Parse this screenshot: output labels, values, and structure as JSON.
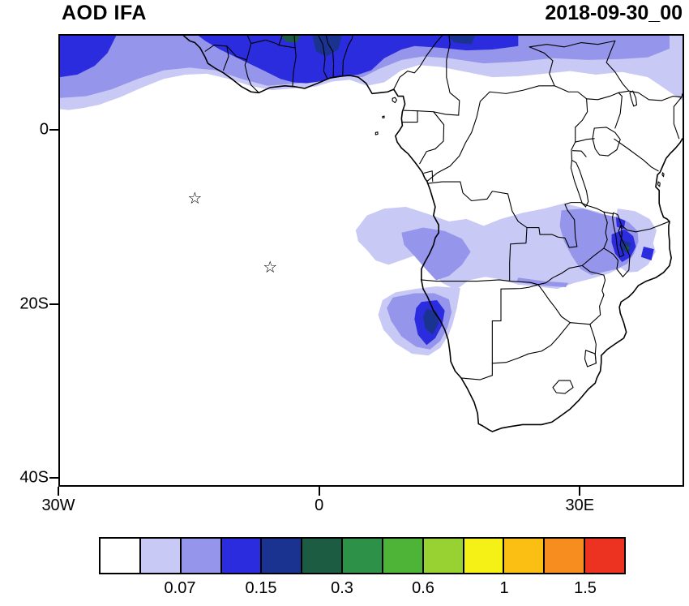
{
  "header": {
    "title": "AOD IFA",
    "timestamp": "2018-09-30_00"
  },
  "map": {
    "extent": {
      "lon_min": -30,
      "lon_max": 42,
      "lat_min": -41,
      "lat_max": 11
    },
    "axes": {
      "lat_ticks": [
        {
          "label": "0",
          "value": 0
        },
        {
          "label": "20S",
          "value": -20
        },
        {
          "label": "40S",
          "value": -40
        }
      ],
      "lon_ticks": [
        {
          "label": "30W",
          "value": -30
        },
        {
          "label": "0",
          "value": 0
        },
        {
          "label": "30E",
          "value": 30
        }
      ]
    }
  },
  "colorbar": {
    "colors": [
      "#FFFFFF",
      "#C9C9F5",
      "#9595EB",
      "#2C2CDF",
      "#1B3390",
      "#1C5C43",
      "#2E9148",
      "#4EB438",
      "#97D232",
      "#F5F116",
      "#FBBE12",
      "#F78D1F",
      "#EC3220"
    ],
    "labels": [
      {
        "text": "0.07",
        "boundary": 2
      },
      {
        "text": "0.15",
        "boundary": 4
      },
      {
        "text": "0.3",
        "boundary": 6
      },
      {
        "text": "0.6",
        "boundary": 8
      },
      {
        "text": "1",
        "boundary": 10
      },
      {
        "text": "1.5",
        "boundary": 12
      }
    ]
  },
  "chart_data": {
    "type": "filled_contour_map",
    "title": "AOD IFA",
    "timestamp": "2018-09-30_00",
    "variable": "Aerosol Optical Depth (AOD)",
    "region": "Africa and tropical Atlantic, 30W-42E, 41S-11N",
    "contour_levels_labeled": [
      0.07,
      0.15,
      0.3,
      0.6,
      1,
      1.5
    ],
    "legend_position": "bottom",
    "marker_glyph": "☆",
    "markers": [
      {
        "type": "star",
        "lon": -14.4,
        "lat": -7.95
      },
      {
        "type": "star",
        "lon": -5.7,
        "lat": -15.95
      }
    ],
    "features": [
      "AOD band along northern edge of domain (5N-11N), strongest between 15W and 23E",
      "Elevated AOD in northwest corner off West Africa",
      "Broad light AOD haze over Angola, Zambia, DRC and Mozambique (8S-18S)",
      "Smoke plume with AOD core near Angola/Namibia coast (12E-14E, 20S-24S)",
      "AOD maximum near Lake Malawi (34E-37E, 11S-15S)"
    ],
    "aod_regions": [
      {
        "name": "sahel-band-light",
        "color_index": 1,
        "points": [
          [
            -30,
            11
          ],
          [
            42,
            11
          ],
          [
            42,
            3.5
          ],
          [
            40.5,
            4.5
          ],
          [
            38,
            6.2
          ],
          [
            35,
            6.8
          ],
          [
            32,
            6.5
          ],
          [
            29,
            6.9
          ],
          [
            26,
            6.6
          ],
          [
            23,
            6.3
          ],
          [
            20,
            6.2
          ],
          [
            17,
            6.8
          ],
          [
            14,
            7.4
          ],
          [
            11.5,
            7.6
          ],
          [
            9.5,
            7.0
          ],
          [
            7.5,
            5.6
          ],
          [
            5.5,
            5.2
          ],
          [
            3.5,
            5.9
          ],
          [
            1.5,
            5.7
          ],
          [
            -0.5,
            5.1
          ],
          [
            -3,
            4.9
          ],
          [
            -5.5,
            4.7
          ],
          [
            -8,
            5.2
          ],
          [
            -10.5,
            6.0
          ],
          [
            -13,
            6.6
          ],
          [
            -15.5,
            6.5
          ],
          [
            -18,
            6.0
          ],
          [
            -20.5,
            5.0
          ],
          [
            -23,
            3.9
          ],
          [
            -25.5,
            3.0
          ],
          [
            -27.5,
            2.6
          ],
          [
            -29,
            2.4
          ],
          [
            -30,
            2.5
          ]
        ]
      },
      {
        "name": "sahel-band-medium",
        "color_index": 2,
        "points": [
          [
            -30,
            11
          ],
          [
            40.5,
            11
          ],
          [
            40.5,
            9.5
          ],
          [
            38,
            8.5
          ],
          [
            35,
            8.3
          ],
          [
            31,
            8.2
          ],
          [
            27,
            8.4
          ],
          [
            23,
            8.0
          ],
          [
            19,
            7.8
          ],
          [
            15,
            8.4
          ],
          [
            12,
            8.6
          ],
          [
            9.5,
            8.2
          ],
          [
            7,
            7.2
          ],
          [
            5,
            6.2
          ],
          [
            3,
            6.3
          ],
          [
            1,
            6.0
          ],
          [
            -1,
            5.6
          ],
          [
            -3.5,
            5.4
          ],
          [
            -6,
            5.2
          ],
          [
            -9,
            6.0
          ],
          [
            -12,
            7.0
          ],
          [
            -15,
            7.3
          ],
          [
            -18,
            7.0
          ],
          [
            -21,
            6.0
          ],
          [
            -24,
            4.8
          ],
          [
            -27,
            4.0
          ],
          [
            -30,
            3.8
          ]
        ]
      },
      {
        "name": "nw-corner-blue",
        "color_index": 3,
        "points": [
          [
            -30,
            11
          ],
          [
            -23.5,
            11
          ],
          [
            -24.5,
            9.0
          ],
          [
            -26,
            7.5
          ],
          [
            -28,
            6.5
          ],
          [
            -30,
            6.2
          ]
        ]
      },
      {
        "name": "sahel-band-blue",
        "color_index": 3,
        "points": [
          [
            -14,
            11
          ],
          [
            23,
            11
          ],
          [
            23,
            9.8
          ],
          [
            20,
            9.4
          ],
          [
            17,
            9.3
          ],
          [
            14,
            9.6
          ],
          [
            11,
            9.8
          ],
          [
            9.5,
            9.4
          ],
          [
            7.5,
            8.4
          ],
          [
            6,
            7.0
          ],
          [
            4.5,
            6.5
          ],
          [
            3,
            6.3
          ],
          [
            1.5,
            6.1
          ],
          [
            0,
            5.7
          ],
          [
            -1.5,
            5.5
          ],
          [
            -3,
            5.6
          ],
          [
            -4.5,
            6.0
          ],
          [
            -6.5,
            7.0
          ],
          [
            -9,
            8.2
          ],
          [
            -11.5,
            9.4
          ],
          [
            -13.2,
            10.4
          ]
        ]
      },
      {
        "name": "sahel-core-navy-a",
        "color_index": 4,
        "points": [
          [
            -0.8,
            11
          ],
          [
            2.6,
            11
          ],
          [
            2.2,
            9.4
          ],
          [
            0.8,
            8.6
          ],
          [
            -0.4,
            9.2
          ]
        ]
      },
      {
        "name": "sahel-core-green",
        "color_index": 5,
        "points": [
          [
            -4.5,
            11
          ],
          [
            -2.2,
            11
          ],
          [
            -2.6,
            10.2
          ],
          [
            -3.8,
            10.3
          ]
        ]
      },
      {
        "name": "sahel-core-navy-b",
        "color_index": 4,
        "points": [
          [
            14.8,
            11
          ],
          [
            18,
            11
          ],
          [
            17.6,
            10.0
          ],
          [
            15.6,
            10.2
          ]
        ]
      },
      {
        "name": "southern-africa-light",
        "color_index": 1,
        "points": [
          [
            4.2,
            -11.5
          ],
          [
            5.5,
            -9.8
          ],
          [
            7.5,
            -9.0
          ],
          [
            10.0,
            -8.8
          ],
          [
            12.5,
            -9.6
          ],
          [
            15.0,
            -10.5
          ],
          [
            17.0,
            -10.2
          ],
          [
            19.0,
            -11.0
          ],
          [
            21.0,
            -10.2
          ],
          [
            23.5,
            -9.5
          ],
          [
            26.0,
            -9.0
          ],
          [
            28.3,
            -8.4
          ],
          [
            30.0,
            -8.8
          ],
          [
            32.3,
            -9.4
          ],
          [
            33.8,
            -10.1
          ],
          [
            34.9,
            -11.5
          ],
          [
            34.7,
            -13.0
          ],
          [
            35.4,
            -14.3
          ],
          [
            35.0,
            -15.8
          ],
          [
            33.5,
            -16.5
          ],
          [
            31.5,
            -17.1
          ],
          [
            29.5,
            -17.6
          ],
          [
            27.5,
            -18.3
          ],
          [
            25.0,
            -18.0
          ],
          [
            23.0,
            -17.8
          ],
          [
            21.0,
            -17.2
          ],
          [
            19.2,
            -16.9
          ],
          [
            17.3,
            -17.3
          ],
          [
            15.8,
            -18.4
          ],
          [
            14.2,
            -17.6
          ],
          [
            13.0,
            -16.2
          ],
          [
            12.6,
            -15.2
          ],
          [
            12.2,
            -14.0
          ],
          [
            10.0,
            -14.8
          ],
          [
            8.0,
            -15.5
          ],
          [
            6.5,
            -15.0
          ],
          [
            5.5,
            -13.8
          ],
          [
            4.5,
            -12.8
          ]
        ]
      },
      {
        "name": "mozambique-light",
        "color_index": 1,
        "points": [
          [
            34.5,
            -9.0
          ],
          [
            36.5,
            -9.3
          ],
          [
            38.2,
            -10.2
          ],
          [
            39.0,
            -11.5
          ],
          [
            38.6,
            -13.0
          ],
          [
            38.9,
            -14.0
          ],
          [
            38.0,
            -15.5
          ],
          [
            36.8,
            -16.3
          ],
          [
            35.6,
            -16.4
          ],
          [
            34.8,
            -15.8
          ],
          [
            34.5,
            -14.0
          ],
          [
            34.3,
            -12.0
          ],
          [
            34.2,
            -10.2
          ]
        ]
      },
      {
        "name": "namibia-plume-light",
        "color_index": 1,
        "points": [
          [
            16.3,
            -18.2
          ],
          [
            15.9,
            -20.5
          ],
          [
            15.4,
            -22.4
          ],
          [
            14.9,
            -23.7
          ],
          [
            14.0,
            -25.1
          ],
          [
            12.6,
            -26.0
          ],
          [
            10.7,
            -25.8
          ],
          [
            8.8,
            -24.6
          ],
          [
            7.4,
            -23.0
          ],
          [
            6.8,
            -21.3
          ],
          [
            7.3,
            -19.6
          ],
          [
            8.8,
            -18.7
          ],
          [
            11.1,
            -18.3
          ],
          [
            13.5,
            -18.0
          ]
        ]
      },
      {
        "name": "angola-medium",
        "color_index": 2,
        "points": [
          [
            9.5,
            -11.8
          ],
          [
            12.0,
            -11.2
          ],
          [
            14.5,
            -11.6
          ],
          [
            16.5,
            -12.5
          ],
          [
            17.5,
            -14.0
          ],
          [
            16.5,
            -15.5
          ],
          [
            15.0,
            -16.8
          ],
          [
            13.5,
            -17.3
          ],
          [
            12.3,
            -16.0
          ],
          [
            11.0,
            -14.5
          ],
          [
            9.8,
            -13.2
          ]
        ]
      },
      {
        "name": "malawi-region-medium",
        "color_index": 2,
        "points": [
          [
            28.0,
            -9.2
          ],
          [
            30.5,
            -9.0
          ],
          [
            32.5,
            -9.6
          ],
          [
            34.5,
            -10.0
          ],
          [
            35.8,
            -10.6
          ],
          [
            36.8,
            -11.6
          ],
          [
            36.9,
            -12.8
          ],
          [
            36.4,
            -14.2
          ],
          [
            35.6,
            -15.4
          ],
          [
            34.4,
            -16.0
          ],
          [
            33.0,
            -16.3
          ],
          [
            31.5,
            -16.7
          ],
          [
            30.2,
            -16.0
          ],
          [
            29.2,
            -14.5
          ],
          [
            28.3,
            -12.8
          ],
          [
            27.8,
            -11.0
          ]
        ]
      },
      {
        "name": "zambezi-strip-medium",
        "color_index": 2,
        "points": [
          [
            23.0,
            -17.0
          ],
          [
            26.0,
            -17.4
          ],
          [
            28.8,
            -17.6
          ],
          [
            28.5,
            -18.1
          ],
          [
            25.5,
            -17.9
          ],
          [
            22.8,
            -17.5
          ]
        ]
      },
      {
        "name": "namibia-plume-medium",
        "color_index": 2,
        "points": [
          [
            8.5,
            -19.3
          ],
          [
            11.0,
            -18.8
          ],
          [
            13.3,
            -18.8
          ],
          [
            15.0,
            -19.5
          ],
          [
            15.3,
            -21.0
          ],
          [
            14.8,
            -22.8
          ],
          [
            14.0,
            -24.3
          ],
          [
            12.8,
            -25.3
          ],
          [
            11.2,
            -25.0
          ],
          [
            9.5,
            -23.8
          ],
          [
            8.3,
            -22.0
          ],
          [
            7.8,
            -20.5
          ]
        ]
      },
      {
        "name": "namibia-plume-blue",
        "color_index": 3,
        "points": [
          [
            11.8,
            -19.8
          ],
          [
            13.6,
            -19.6
          ],
          [
            14.5,
            -20.8
          ],
          [
            14.2,
            -22.5
          ],
          [
            13.4,
            -24.0
          ],
          [
            12.4,
            -24.8
          ],
          [
            11.4,
            -23.6
          ],
          [
            11.0,
            -21.8
          ],
          [
            11.2,
            -20.5
          ]
        ]
      },
      {
        "name": "malawi-blue",
        "color_index": 3,
        "points": [
          [
            33.8,
            -12.0
          ],
          [
            35.3,
            -11.4
          ],
          [
            36.3,
            -12.2
          ],
          [
            36.6,
            -13.4
          ],
          [
            36.0,
            -14.6
          ],
          [
            35.0,
            -15.2
          ],
          [
            34.2,
            -14.2
          ],
          [
            33.8,
            -12.9
          ]
        ]
      },
      {
        "name": "malawi-blue-north",
        "color_index": 3,
        "points": [
          [
            34.3,
            -10.0
          ],
          [
            35.4,
            -10.4
          ],
          [
            35.2,
            -11.4
          ],
          [
            34.4,
            -11.1
          ]
        ]
      },
      {
        "name": "mozambique-blue",
        "color_index": 3,
        "points": [
          [
            37.5,
            -13.4
          ],
          [
            38.7,
            -13.7
          ],
          [
            38.4,
            -15.0
          ],
          [
            37.2,
            -14.6
          ]
        ]
      },
      {
        "name": "namibia-plume-navy",
        "color_index": 4,
        "points": [
          [
            12.4,
            -20.6
          ],
          [
            13.6,
            -20.9
          ],
          [
            13.8,
            -22.3
          ],
          [
            13.1,
            -23.6
          ],
          [
            12.2,
            -22.8
          ],
          [
            12.0,
            -21.5
          ]
        ]
      },
      {
        "name": "malawi-navy",
        "color_index": 4,
        "points": [
          [
            35.0,
            -12.6
          ],
          [
            36.0,
            -13.0
          ],
          [
            35.8,
            -14.2
          ],
          [
            34.8,
            -13.7
          ]
        ]
      },
      {
        "name": "malawi-green",
        "color_index": 5,
        "points": [
          [
            35.3,
            -13.2
          ],
          [
            35.9,
            -13.5
          ],
          [
            35.5,
            -14.0
          ]
        ]
      }
    ]
  }
}
